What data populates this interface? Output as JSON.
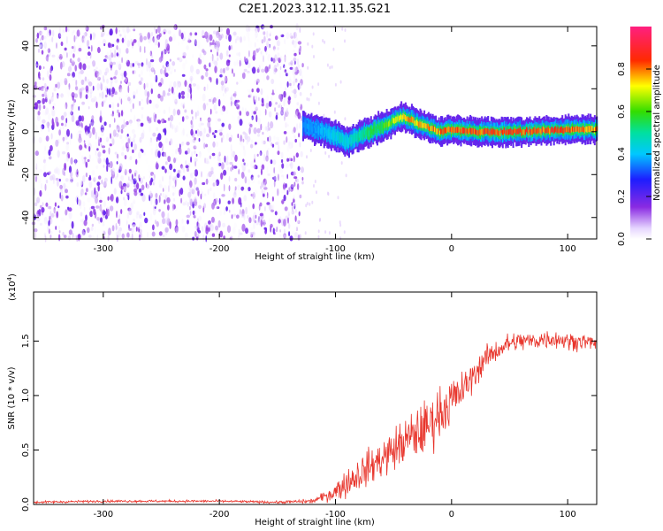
{
  "figure": {
    "title": "C2E1.2023.312.11.35.G21"
  },
  "chart_data": [
    {
      "type": "heatmap",
      "xlabel": "Height of straight line (km)",
      "ylabel": "Frequency (Hz)",
      "xlim": [
        -360,
        125
      ],
      "ylim": [
        -50,
        49
      ],
      "xticks": [
        -300,
        -200,
        -100,
        0,
        100
      ],
      "yticks": [
        -40,
        -20,
        0,
        20,
        40
      ],
      "colorbar": {
        "label": "Normalized spectral amplitude",
        "range": [
          0.0,
          1.0
        ],
        "ticks": [
          0.0,
          0.2,
          0.4,
          0.6,
          0.8
        ],
        "colormap": "rainbow (white-violet-blue-cyan-green-yellow-red-pink)"
      },
      "noise_region": {
        "x_range": [
          -360,
          -128
        ],
        "amplitude": "low (0.0-0.1), scattered violet speckle across all frequencies"
      },
      "signal_ridge": {
        "description": "carrier line near 0 Hz, amplitude rising from ~0.4 to ~0.8 with height",
        "x": [
          -128,
          -110,
          -95,
          -90,
          -80,
          -70,
          -60,
          -50,
          -40,
          -30,
          -20,
          -10,
          0,
          20,
          60,
          100,
          125
        ],
        "freq": [
          3,
          0,
          -3,
          -5,
          -2,
          0,
          2,
          5,
          7,
          4,
          2,
          0,
          1,
          0,
          0,
          1,
          1
        ],
        "amplitude": [
          0.35,
          0.4,
          0.45,
          0.45,
          0.5,
          0.55,
          0.6,
          0.7,
          0.8,
          0.75,
          0.8,
          0.8,
          0.85,
          0.85,
          0.85,
          0.85,
          0.8
        ]
      },
      "grid": false
    },
    {
      "type": "line",
      "xlabel": "Height of straight line (km)",
      "ylabel": "SNR (10 * v/v)",
      "y_multiplier_label": "(x10",
      "y_multiplier_exp": "4",
      "xlim": [
        -360,
        125
      ],
      "ylim": [
        0.0,
        1.95
      ],
      "xticks": [
        -300,
        -200,
        -100,
        0,
        100
      ],
      "yticks": [
        0.0,
        0.5,
        1.0,
        1.5
      ],
      "series": [
        {
          "color": "#e8352c",
          "x": [
            -360,
            -300,
            -250,
            -200,
            -150,
            -120,
            -110,
            -100,
            -90,
            -80,
            -70,
            -60,
            -50,
            -40,
            -30,
            -20,
            -10,
            0,
            10,
            20,
            30,
            40,
            50,
            60,
            70,
            80,
            90,
            100,
            110,
            125
          ],
          "y": [
            0.02,
            0.03,
            0.03,
            0.03,
            0.02,
            0.03,
            0.07,
            0.12,
            0.2,
            0.28,
            0.35,
            0.42,
            0.5,
            0.58,
            0.65,
            0.72,
            0.85,
            0.95,
            1.05,
            1.2,
            1.35,
            1.42,
            1.48,
            1.5,
            1.5,
            1.52,
            1.52,
            1.5,
            1.5,
            1.48
          ],
          "noise": [
            0.01,
            0.01,
            0.01,
            0.01,
            0.01,
            0.02,
            0.04,
            0.08,
            0.12,
            0.14,
            0.15,
            0.16,
            0.18,
            0.2,
            0.22,
            0.22,
            0.22,
            0.2,
            0.15,
            0.12,
            0.1,
            0.09,
            0.09,
            0.08,
            0.08,
            0.08,
            0.08,
            0.07,
            0.07,
            0.07
          ]
        }
      ],
      "grid": false
    }
  ]
}
